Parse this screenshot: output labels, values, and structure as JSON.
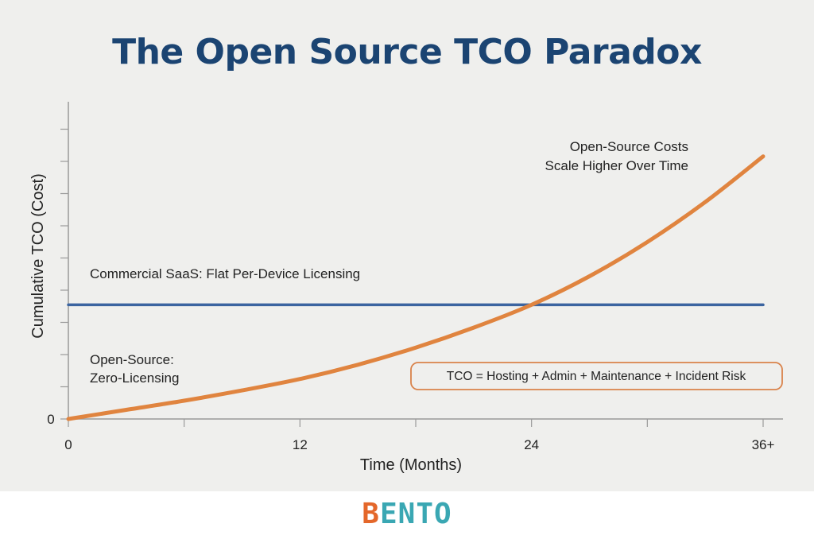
{
  "title": "The Open Source TCO Paradox",
  "chart_data": {
    "type": "line",
    "title": "The Open Source TCO Paradox",
    "xlabel": "Time (Months)",
    "ylabel": "Cumulative TCO (Cost)",
    "x_ticks": [
      "0",
      "12",
      "24",
      "36+"
    ],
    "y_ticks": [
      "0"
    ],
    "xlim": [
      0,
      36
    ],
    "ylim": [
      0,
      100
    ],
    "grid": false,
    "series": [
      {
        "name": "Commercial SaaS: Flat Per-Device Licensing",
        "color": "#3b64a0",
        "x": [
          0,
          36
        ],
        "y": [
          40,
          40
        ]
      },
      {
        "name": "Open-Source: Zero-Licensing",
        "color": "#e0843f",
        "x": [
          0,
          3,
          6,
          9,
          12,
          15,
          18,
          21,
          24,
          27,
          30,
          33,
          36
        ],
        "y": [
          0,
          3.2,
          6.4,
          10,
          14,
          19,
          25,
          32,
          40,
          50,
          62,
          76,
          92
        ]
      }
    ],
    "annotations": {
      "saas_label": "Commercial SaaS: Flat Per-Device Licensing",
      "oss_label_line1": "Open-Source:",
      "oss_label_line2": "Zero-Licensing",
      "scale_label_line1": "Open-Source Costs",
      "scale_label_line2": "Scale Higher Over Time",
      "formula": "TCO = Hosting + Admin + Maintenance + Incident Risk"
    },
    "box_border_color": "#d9824a"
  },
  "logo": {
    "b": "B",
    "rest": "ENTO"
  }
}
